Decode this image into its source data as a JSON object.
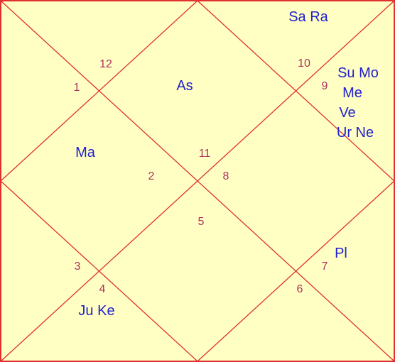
{
  "colors": {
    "background": "#FFFFC4",
    "lines": "#E03030",
    "house_numbers": "#B03060",
    "planets": "#2020D0"
  },
  "house_numbers": {
    "n1": "1",
    "n2": "2",
    "n3": "3",
    "n4": "4",
    "n5": "5",
    "n6": "6",
    "n7": "7",
    "n8": "8",
    "n9": "9",
    "n10": "10",
    "n11": "11",
    "n12": "12"
  },
  "planets": {
    "sa_ra": "Sa Ra",
    "as": "As",
    "ma": "Ma",
    "su_mo": "Su Mo",
    "me": "Me",
    "ve": "Ve",
    "ur_ne": "Ur Ne",
    "pl": "Pl",
    "ju_ke": "Ju Ke"
  }
}
